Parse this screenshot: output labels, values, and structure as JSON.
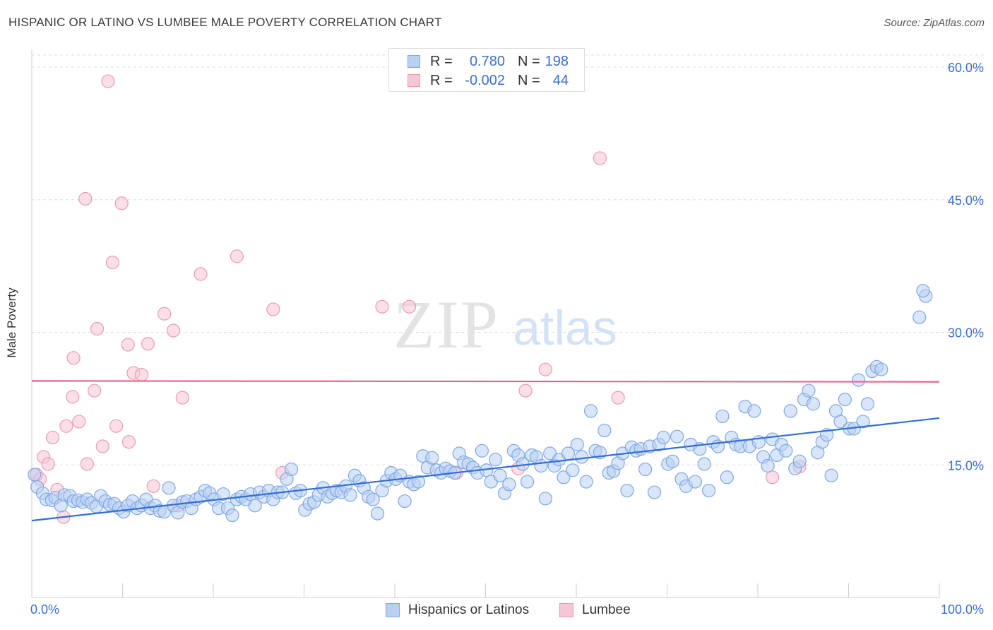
{
  "title": "HISPANIC OR LATINO VS LUMBEE MALE POVERTY CORRELATION CHART",
  "source": "Source: ZipAtlas.com",
  "watermark": {
    "zip": "ZIP",
    "atlas": "atlas"
  },
  "colors": {
    "blue_fill": "#b9d0f2",
    "blue_stroke": "#7ea8e4",
    "blue_line": "#2f6fd6",
    "pink_fill": "#f8c5d4",
    "pink_stroke": "#ec9ab2",
    "pink_line": "#e8608a",
    "tick_label": "#3a6ed4",
    "grid": "#dddddd"
  },
  "legend_top": [
    {
      "r_label": "R =",
      "r_value": "0.780",
      "n_label": "N =",
      "n_value": "198"
    },
    {
      "r_label": "R =",
      "r_value": "-0.002",
      "n_label": "N =",
      "n_value": "44"
    }
  ],
  "legend_bottom": [
    "Hispanics or Latinos",
    "Lumbee"
  ],
  "chart_data": {
    "type": "scatter",
    "title": "HISPANIC OR LATINO VS LUMBEE MALE POVERTY CORRELATION CHART",
    "xlabel": "",
    "ylabel": "Male Poverty",
    "xlim": [
      0,
      100
    ],
    "ylim": [
      0,
      62
    ],
    "x_tick_labels": [
      "0.0%",
      "100.0%"
    ],
    "y_ticks": [
      15,
      30,
      45,
      60
    ],
    "y_tick_labels": [
      "15.0%",
      "30.0%",
      "45.0%",
      "60.0%"
    ],
    "grid": true,
    "legend_position": "top-center",
    "series": [
      {
        "name": "Hispanics or Latinos",
        "r": 0.78,
        "n": 198,
        "trend": {
          "x": [
            0,
            100
          ],
          "y": [
            8.7,
            20.3
          ]
        },
        "points": [
          [
            0.3,
            13.9
          ],
          [
            0.6,
            12.5
          ],
          [
            1.2,
            11.8
          ],
          [
            1.6,
            11.1
          ],
          [
            2.2,
            11.0
          ],
          [
            2.6,
            11.3
          ],
          [
            3.2,
            10.4
          ],
          [
            3.6,
            11.6
          ],
          [
            4.2,
            11.5
          ],
          [
            4.6,
            10.9
          ],
          [
            5.1,
            11.0
          ],
          [
            5.6,
            10.8
          ],
          [
            6.1,
            11.1
          ],
          [
            6.6,
            10.7
          ],
          [
            7.1,
            10.3
          ],
          [
            7.6,
            11.5
          ],
          [
            8.1,
            10.9
          ],
          [
            8.6,
            10.5
          ],
          [
            9.1,
            10.6
          ],
          [
            9.6,
            10.1
          ],
          [
            10.1,
            9.7
          ],
          [
            10.6,
            10.4
          ],
          [
            11.1,
            10.9
          ],
          [
            11.6,
            10.1
          ],
          [
            12.1,
            10.4
          ],
          [
            12.6,
            11.1
          ],
          [
            13.1,
            10.1
          ],
          [
            13.6,
            10.4
          ],
          [
            14.1,
            9.8
          ],
          [
            14.6,
            9.7
          ],
          [
            15.1,
            12.4
          ],
          [
            15.6,
            10.4
          ],
          [
            16.1,
            9.6
          ],
          [
            16.6,
            10.8
          ],
          [
            17.1,
            10.9
          ],
          [
            17.6,
            10.1
          ],
          [
            18.1,
            11.1
          ],
          [
            18.6,
            11.4
          ],
          [
            19.1,
            12.1
          ],
          [
            19.6,
            11.8
          ],
          [
            20.1,
            11.1
          ],
          [
            20.6,
            10.1
          ],
          [
            21.1,
            11.7
          ],
          [
            21.6,
            10.1
          ],
          [
            22.1,
            9.3
          ],
          [
            22.6,
            11.1
          ],
          [
            23.1,
            11.4
          ],
          [
            23.6,
            11.1
          ],
          [
            24.1,
            11.7
          ],
          [
            24.6,
            10.4
          ],
          [
            25.1,
            11.9
          ],
          [
            25.6,
            11.4
          ],
          [
            26.1,
            12.1
          ],
          [
            26.6,
            11.1
          ],
          [
            27.1,
            11.9
          ],
          [
            27.6,
            11.9
          ],
          [
            28.1,
            13.4
          ],
          [
            28.6,
            14.5
          ],
          [
            29.1,
            11.8
          ],
          [
            29.6,
            12.1
          ],
          [
            30.1,
            9.9
          ],
          [
            30.6,
            10.6
          ],
          [
            31.1,
            10.8
          ],
          [
            31.6,
            11.6
          ],
          [
            32.1,
            12.4
          ],
          [
            32.6,
            11.4
          ],
          [
            33.1,
            11.8
          ],
          [
            33.6,
            12.1
          ],
          [
            34.1,
            11.9
          ],
          [
            34.6,
            12.6
          ],
          [
            35.1,
            11.6
          ],
          [
            35.6,
            13.8
          ],
          [
            36.1,
            13.2
          ],
          [
            36.6,
            12.4
          ],
          [
            37.1,
            11.4
          ],
          [
            37.6,
            11.1
          ],
          [
            38.1,
            9.5
          ],
          [
            38.6,
            12.1
          ],
          [
            39.1,
            13.2
          ],
          [
            39.6,
            14.1
          ],
          [
            40.1,
            13.4
          ],
          [
            40.6,
            13.8
          ],
          [
            41.1,
            10.9
          ],
          [
            41.6,
            13.1
          ],
          [
            42.1,
            12.8
          ],
          [
            42.6,
            13.1
          ],
          [
            43.1,
            16.0
          ],
          [
            43.6,
            14.7
          ],
          [
            44.1,
            15.8
          ],
          [
            44.6,
            14.4
          ],
          [
            45.1,
            14.1
          ],
          [
            45.6,
            14.6
          ],
          [
            46.1,
            14.3
          ],
          [
            46.6,
            14.1
          ],
          [
            47.1,
            16.3
          ],
          [
            47.6,
            15.3
          ],
          [
            48.1,
            15.1
          ],
          [
            48.6,
            14.7
          ],
          [
            49.1,
            14.1
          ],
          [
            49.6,
            16.6
          ],
          [
            50.1,
            14.4
          ],
          [
            50.6,
            13.1
          ],
          [
            51.1,
            15.6
          ],
          [
            51.6,
            13.8
          ],
          [
            52.1,
            11.8
          ],
          [
            52.6,
            12.8
          ],
          [
            53.1,
            16.6
          ],
          [
            53.6,
            16.1
          ],
          [
            54.1,
            15.1
          ],
          [
            54.6,
            13.1
          ],
          [
            55.1,
            16.1
          ],
          [
            55.6,
            15.9
          ],
          [
            56.1,
            14.9
          ],
          [
            56.6,
            11.2
          ],
          [
            57.1,
            16.3
          ],
          [
            57.6,
            14.9
          ],
          [
            58.1,
            15.6
          ],
          [
            58.6,
            13.6
          ],
          [
            59.1,
            16.3
          ],
          [
            59.6,
            14.4
          ],
          [
            60.1,
            17.3
          ],
          [
            60.6,
            15.9
          ],
          [
            61.1,
            13.1
          ],
          [
            61.6,
            21.1
          ],
          [
            62.1,
            16.6
          ],
          [
            62.6,
            16.4
          ],
          [
            63.1,
            18.9
          ],
          [
            63.6,
            14.1
          ],
          [
            64.1,
            14.3
          ],
          [
            64.6,
            15.2
          ],
          [
            65.1,
            16.3
          ],
          [
            65.6,
            12.1
          ],
          [
            66.1,
            17.0
          ],
          [
            66.6,
            16.6
          ],
          [
            67.1,
            16.8
          ],
          [
            67.6,
            14.5
          ],
          [
            68.1,
            17.1
          ],
          [
            68.6,
            11.9
          ],
          [
            69.1,
            17.3
          ],
          [
            69.6,
            18.1
          ],
          [
            70.1,
            15.1
          ],
          [
            70.6,
            15.4
          ],
          [
            71.1,
            18.2
          ],
          [
            71.6,
            13.4
          ],
          [
            72.1,
            12.6
          ],
          [
            72.6,
            17.3
          ],
          [
            73.1,
            13.1
          ],
          [
            73.6,
            16.8
          ],
          [
            74.1,
            15.1
          ],
          [
            74.6,
            12.1
          ],
          [
            75.1,
            17.6
          ],
          [
            75.6,
            17.1
          ],
          [
            76.1,
            20.5
          ],
          [
            76.6,
            13.6
          ],
          [
            77.1,
            18.1
          ],
          [
            77.6,
            17.3
          ],
          [
            78.1,
            17.1
          ],
          [
            78.6,
            21.6
          ],
          [
            79.1,
            17.1
          ],
          [
            79.6,
            21.1
          ],
          [
            80.1,
            17.6
          ],
          [
            80.6,
            15.9
          ],
          [
            81.1,
            14.9
          ],
          [
            81.6,
            17.9
          ],
          [
            82.1,
            16.1
          ],
          [
            82.6,
            17.3
          ],
          [
            83.1,
            16.6
          ],
          [
            83.6,
            21.1
          ],
          [
            84.1,
            14.6
          ],
          [
            84.6,
            15.4
          ],
          [
            85.1,
            22.4
          ],
          [
            85.6,
            23.4
          ],
          [
            86.1,
            21.9
          ],
          [
            86.6,
            16.4
          ],
          [
            87.1,
            17.6
          ],
          [
            87.6,
            18.4
          ],
          [
            88.1,
            13.8
          ],
          [
            88.6,
            21.1
          ],
          [
            89.1,
            19.9
          ],
          [
            89.6,
            22.4
          ],
          [
            90.1,
            19.1
          ],
          [
            90.6,
            19.1
          ],
          [
            91.1,
            24.6
          ],
          [
            91.6,
            19.9
          ],
          [
            92.1,
            21.9
          ],
          [
            92.6,
            25.6
          ],
          [
            93.1,
            26.1
          ],
          [
            93.6,
            25.8
          ],
          [
            98.5,
            34.1
          ],
          [
            98.2,
            34.7
          ],
          [
            97.8,
            31.7
          ]
        ]
      },
      {
        "name": "Lumbee",
        "r": -0.002,
        "n": 44,
        "trend": {
          "x": [
            0,
            100
          ],
          "y": [
            24.5,
            24.4
          ]
        },
        "points": [
          [
            0.5,
            13.9
          ],
          [
            0.9,
            13.4
          ],
          [
            1.3,
            15.9
          ],
          [
            1.8,
            15.1
          ],
          [
            2.3,
            18.1
          ],
          [
            2.8,
            12.2
          ],
          [
            3.5,
            9.1
          ],
          [
            3.8,
            19.4
          ],
          [
            4.5,
            22.7
          ],
          [
            4.6,
            27.1
          ],
          [
            5.2,
            19.9
          ],
          [
            6.1,
            15.1
          ],
          [
            6.9,
            23.4
          ],
          [
            7.2,
            30.4
          ],
          [
            7.8,
            17.1
          ],
          [
            8.4,
            58.4
          ],
          [
            8.9,
            37.9
          ],
          [
            9.3,
            19.4
          ],
          [
            9.9,
            44.6
          ],
          [
            10.6,
            28.6
          ],
          [
            10.7,
            17.6
          ],
          [
            11.2,
            25.4
          ],
          [
            12.1,
            25.2
          ],
          [
            12.8,
            28.7
          ],
          [
            13.4,
            12.6
          ],
          [
            14.6,
            32.1
          ],
          [
            15.6,
            30.2
          ],
          [
            16.1,
            10.4
          ],
          [
            16.6,
            22.6
          ],
          [
            18.6,
            36.6
          ],
          [
            22.6,
            38.6
          ],
          [
            26.6,
            32.6
          ],
          [
            38.6,
            32.9
          ],
          [
            41.6,
            32.9
          ],
          [
            46.8,
            14.1
          ],
          [
            53.6,
            14.6
          ],
          [
            54.4,
            23.4
          ],
          [
            56.6,
            25.8
          ],
          [
            62.6,
            49.7
          ],
          [
            64.6,
            22.6
          ],
          [
            81.6,
            13.6
          ],
          [
            84.6,
            14.8
          ],
          [
            5.9,
            45.1
          ],
          [
            27.6,
            14.1
          ]
        ]
      }
    ]
  }
}
